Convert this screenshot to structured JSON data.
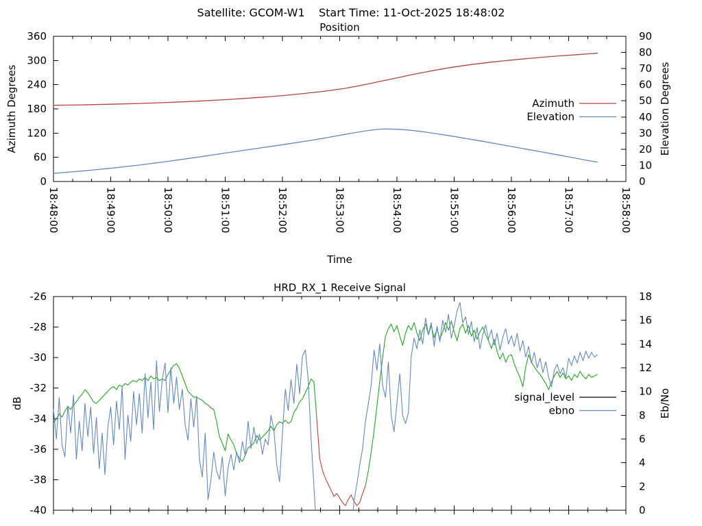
{
  "header": {
    "full": "Satellite: GCOM-W1    Start Time: 11-Oct-2025 18:48:02"
  },
  "colors": {
    "azimuth_red": "#b2433d",
    "elevation_blue": "#6288bd",
    "signal_green": "#23a323",
    "signal_unlock_red": "#b2433d",
    "signal_legend_black": "#000000",
    "ebno_blue": "#6288bd",
    "axis": "#000000",
    "background": "#ffffff"
  },
  "chart_data": [
    {
      "type": "line",
      "title": "Position",
      "xlabel": "Time",
      "ylabel_left": "Azimuth Degrees",
      "ylabel_right": "Elevation Degrees",
      "x_range_seconds": [
        0,
        600
      ],
      "x_major_step_seconds": 60,
      "x_minor_step_seconds": 20,
      "x_tick_labels": [
        "18:48:00",
        "18:49:00",
        "18:50:00",
        "18:51:00",
        "18:52:00",
        "18:53:00",
        "18:54:00",
        "18:55:00",
        "18:56:00",
        "18:57:00",
        "18:58:00"
      ],
      "x_tick_labels_visible": true,
      "ylim_left": [
        0,
        360
      ],
      "ytick_step_left": 60,
      "ylim_right": [
        0,
        90
      ],
      "ytick_step_right": 10,
      "grid": false,
      "legend_position": "inside-right",
      "legend": [
        {
          "label": "Azimuth",
          "color": "#b2433d"
        },
        {
          "label": "Elevation",
          "color": "#6288bd"
        }
      ],
      "series": [
        {
          "name": "Azimuth",
          "axis": "left",
          "color": "#b2433d",
          "smooth": true,
          "points": [
            [
              0,
              189
            ],
            [
              30,
              190
            ],
            [
              60,
              191.5
            ],
            [
              90,
              193.5
            ],
            [
              120,
              196
            ],
            [
              150,
              199
            ],
            [
              180,
              203
            ],
            [
              210,
              207.5
            ],
            [
              240,
              213
            ],
            [
              270,
              220
            ],
            [
              300,
              229
            ],
            [
              315,
              235
            ],
            [
              330,
              242
            ],
            [
              345,
              249.5
            ],
            [
              360,
              257
            ],
            [
              375,
              264.5
            ],
            [
              390,
              271.5
            ],
            [
              405,
              278
            ],
            [
              420,
              284
            ],
            [
              435,
              289
            ],
            [
              450,
              293.5
            ],
            [
              465,
              297.5
            ],
            [
              480,
              301
            ],
            [
              495,
              304.5
            ],
            [
              510,
              307.5
            ],
            [
              525,
              310.5
            ],
            [
              540,
              313
            ],
            [
              555,
              315.5
            ],
            [
              570,
              318
            ]
          ]
        },
        {
          "name": "Elevation",
          "axis": "right",
          "color": "#6288bd",
          "smooth": true,
          "points": [
            [
              0,
              5
            ],
            [
              30,
              6.5
            ],
            [
              60,
              8.2
            ],
            [
              90,
              10.2
            ],
            [
              120,
              12.5
            ],
            [
              150,
              15
            ],
            [
              180,
              17.6
            ],
            [
              210,
              20.2
            ],
            [
              240,
              22.8
            ],
            [
              270,
              25.5
            ],
            [
              285,
              27
            ],
            [
              300,
              28.6
            ],
            [
              315,
              30.2
            ],
            [
              330,
              31.6
            ],
            [
              345,
              32.5
            ],
            [
              360,
              32.4
            ],
            [
              375,
              31.7
            ],
            [
              390,
              30.6
            ],
            [
              405,
              29.3
            ],
            [
              420,
              27.9
            ],
            [
              435,
              26.4
            ],
            [
              450,
              24.9
            ],
            [
              465,
              23.3
            ],
            [
              480,
              21.7
            ],
            [
              495,
              20.1
            ],
            [
              510,
              18.5
            ],
            [
              525,
              16.9
            ],
            [
              540,
              15.3
            ],
            [
              555,
              13.6
            ],
            [
              570,
              12
            ]
          ]
        }
      ]
    },
    {
      "type": "line",
      "title": "HRD_RX_1 Receive Signal",
      "xlabel": "",
      "ylabel_left": "dB",
      "ylabel_right": "Eb/No",
      "x_range_seconds": [
        0,
        600
      ],
      "x_major_step_seconds": 60,
      "x_minor_step_seconds": 20,
      "x_tick_labels": [],
      "x_tick_labels_visible": false,
      "ylim_left": [
        -40,
        -26
      ],
      "ytick_step_left": 2,
      "ylim_right": [
        0,
        18
      ],
      "ytick_step_right": 2,
      "grid": false,
      "legend_position": "inside-right",
      "legend": [
        {
          "label": "signal_level",
          "color": "#000000"
        },
        {
          "label": "ebno",
          "color": "#6288bd"
        }
      ],
      "series": [
        {
          "name": "signal_level",
          "axis": "left",
          "color": "#23a323",
          "unlock_color": "#b2433d",
          "unlock_intervals_seconds": [
            [
              162,
              168
            ],
            [
              275,
              327
            ]
          ],
          "t0": 0,
          "dt": 3,
          "values": [
            -34.3,
            -34.0,
            -33.7,
            -33.9,
            -33.5,
            -33.2,
            -33.4,
            -33.1,
            -32.9,
            -32.6,
            -32.4,
            -32.1,
            -32.3,
            -32.6,
            -32.9,
            -33.0,
            -32.8,
            -32.6,
            -32.4,
            -32.2,
            -32.0,
            -31.9,
            -32.1,
            -31.8,
            -31.9,
            -31.7,
            -31.8,
            -31.6,
            -31.5,
            -31.6,
            -31.4,
            -31.5,
            -31.3,
            -31.5,
            -31.2,
            -31.4,
            -31.3,
            -31.5,
            -31.4,
            -31.5,
            -31.1,
            -30.8,
            -30.5,
            -30.4,
            -30.7,
            -31.2,
            -31.7,
            -32.2,
            -32.4,
            -32.6,
            -32.6,
            -32.7,
            -32.8,
            -33.0,
            -33.1,
            -33.3,
            -33.4,
            -34.2,
            -35.2,
            -35.6,
            -36.1,
            -35.0,
            -35.4,
            -35.7,
            -36.3,
            -36.6,
            -36.8,
            -36.4,
            -35.9,
            -35.8,
            -35.6,
            -35.1,
            -35.4,
            -35.2,
            -35.0,
            -34.8,
            -34.5,
            -34.8,
            -34.4,
            -34.2,
            -34.3,
            -34.1,
            -34.3,
            -34.2,
            -33.6,
            -33.3,
            -32.9,
            -32.7,
            -32.3,
            -31.9,
            -31.4,
            -31.6,
            -34.0,
            -36.6,
            -37.4,
            -37.9,
            -38.3,
            -38.7,
            -39.1,
            -38.9,
            -39.2,
            -39.5,
            -39.7,
            -39.3,
            -39.0,
            -39.4,
            -39.7,
            -39.5,
            -38.9,
            -38.4,
            -37.4,
            -36.2,
            -34.8,
            -33.2,
            -31.6,
            -30.0,
            -28.6,
            -28.1,
            -27.8,
            -28.3,
            -27.9,
            -28.6,
            -29.2,
            -28.4,
            -27.9,
            -28.2,
            -27.7,
            -28.4,
            -28.9,
            -28.2,
            -27.8,
            -28.5,
            -27.9,
            -28.7,
            -28.1,
            -28.8,
            -28.3,
            -27.7,
            -28.2,
            -27.6,
            -28.3,
            -28.9,
            -28.1,
            -27.8,
            -28.4,
            -27.9,
            -28.6,
            -28.2,
            -28.8,
            -28.3,
            -28.0,
            -28.5,
            -28.9,
            -29.4,
            -28.8,
            -29.6,
            -30.1,
            -29.7,
            -30.3,
            -29.9,
            -29.8,
            -30.4,
            -30.9,
            -31.3,
            -31.9,
            -30.6,
            -29.8,
            -30.3,
            -30.6,
            -30.9,
            -31.1,
            -31.4,
            -31.7,
            -32.1,
            -31.6,
            -31.2,
            -30.9,
            -31.3,
            -31.0,
            -31.4,
            -31.2,
            -31.5,
            -31.1,
            -31.3,
            -30.9,
            -31.2,
            -31.4,
            -31.1,
            -31.3,
            -31.2,
            -31.1
          ]
        },
        {
          "name": "ebno",
          "axis": "right",
          "color": "#6288bd",
          "t0": 0,
          "dt": 3,
          "values": [
            8.5,
            6.0,
            9.5,
            5.5,
            4.5,
            8.8,
            6.5,
            9.7,
            4.3,
            7.5,
            5.0,
            9.0,
            6.2,
            8.7,
            4.8,
            7.8,
            3.5,
            6.5,
            3.0,
            7.0,
            8.7,
            5.5,
            9.2,
            6.8,
            10.4,
            4.3,
            8.0,
            5.8,
            10.0,
            7.2,
            9.8,
            6.5,
            11.5,
            7.8,
            10.8,
            6.8,
            12.6,
            8.3,
            11.0,
            12.4,
            8.2,
            12.0,
            9.0,
            11.2,
            8.5,
            10.2,
            7.2,
            5.9,
            9.4,
            7.0,
            9.6,
            4.3,
            2.8,
            6.5,
            0.9,
            2.5,
            4.9,
            3.3,
            2.6,
            4.5,
            1.2,
            3.6,
            4.7,
            3.4,
            4.9,
            4.0,
            5.8,
            4.6,
            7.5,
            5.2,
            7.0,
            5.6,
            6.4,
            4.7,
            6.0,
            5.5,
            8.0,
            6.8,
            3.8,
            2.4,
            6.5,
            10.2,
            8.4,
            11.0,
            9.0,
            12.3,
            9.8,
            13.0,
            13.5,
            11.0,
            6.0,
            2.0,
            -2,
            -3,
            -3,
            -3,
            -3,
            -3,
            -3,
            -3,
            -3,
            -3,
            -3,
            -3,
            -2,
            0.8,
            2.2,
            3.8,
            5.2,
            7.5,
            9.0,
            10.5,
            13.5,
            11.8,
            14.0,
            10.5,
            9.5,
            12.5,
            8.0,
            6.6,
            9.0,
            11.5,
            8.0,
            7.3,
            8.2,
            13.0,
            14.5,
            13.6,
            15.2,
            14.0,
            16.2,
            14.8,
            15.8,
            13.8,
            15.5,
            14.2,
            16.0,
            15.0,
            16.5,
            14.5,
            15.5,
            16.8,
            17.5,
            15.8,
            16.3,
            14.8,
            15.9,
            14.2,
            15.4,
            13.6,
            14.8,
            15.6,
            14.4,
            15.2,
            13.9,
            14.9,
            13.5,
            14.6,
            15.3,
            14.0,
            14.7,
            13.8,
            14.9,
            13.4,
            14.3,
            12.9,
            13.8,
            12.4,
            13.3,
            12.0,
            12.8,
            11.6,
            12.5,
            11.2,
            10.4,
            11.8,
            12.3,
            11.5,
            12.0,
            11.2,
            12.8,
            12.2,
            13.0,
            12.4,
            13.3,
            12.6,
            13.4,
            12.8,
            13.3,
            12.9,
            13.1
          ]
        }
      ]
    }
  ]
}
